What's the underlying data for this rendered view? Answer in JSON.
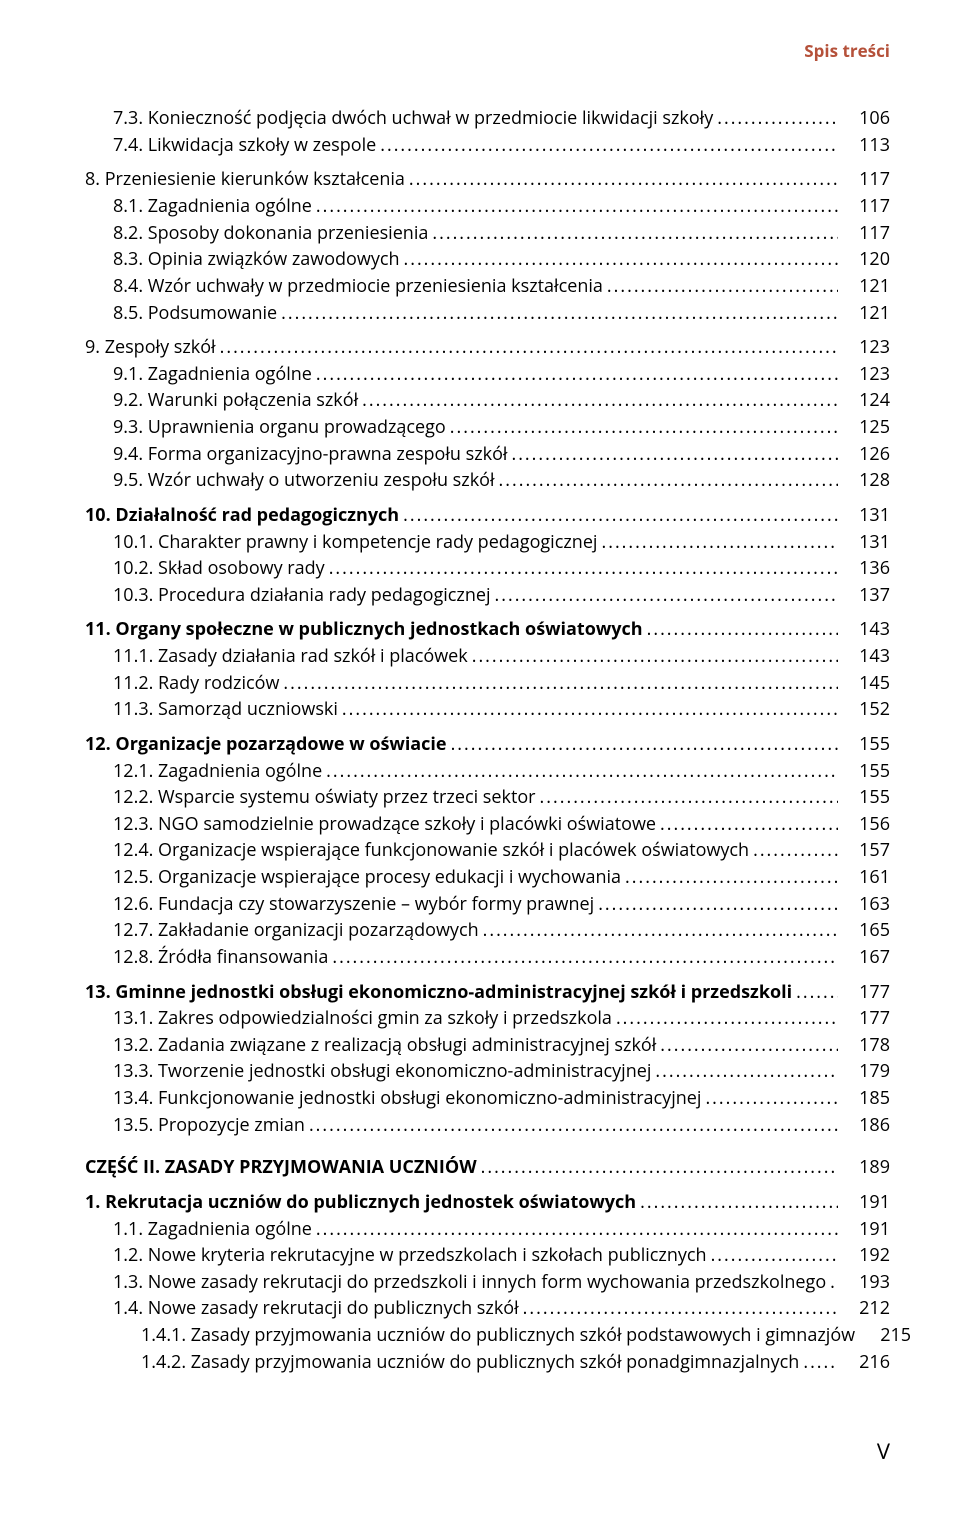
{
  "running_head": "Spis treści",
  "leader_char": ".",
  "footer_page": "V",
  "entries": [
    {
      "indent": 1,
      "bold": false,
      "text": "7.3. Konieczność podjęcia dwóch uchwał w przedmiocie likwidacji szkoły",
      "page": "106",
      "group_start": false
    },
    {
      "indent": 1,
      "bold": false,
      "text": "7.4. Likwidacja szkoły w zespole",
      "page": "113",
      "group_start": false
    },
    {
      "indent": 0,
      "bold": false,
      "text": "8. Przeniesienie kierunków kształcenia",
      "page": "117",
      "group_start": true
    },
    {
      "indent": 1,
      "bold": false,
      "text": "8.1. Zagadnienia ogólne",
      "page": "117",
      "group_start": false
    },
    {
      "indent": 1,
      "bold": false,
      "text": "8.2. Sposoby dokonania przeniesienia",
      "page": "117",
      "group_start": false
    },
    {
      "indent": 1,
      "bold": false,
      "text": "8.3. Opinia związków zawodowych",
      "page": "120",
      "group_start": false
    },
    {
      "indent": 1,
      "bold": false,
      "text": "8.4. Wzór uchwały w przedmiocie przeniesienia kształcenia",
      "page": "121",
      "group_start": false
    },
    {
      "indent": 1,
      "bold": false,
      "text": "8.5. Podsumowanie",
      "page": "121",
      "group_start": false
    },
    {
      "indent": 0,
      "bold": false,
      "text": "9. Zespoły szkół",
      "page": "123",
      "group_start": true
    },
    {
      "indent": 1,
      "bold": false,
      "text": "9.1. Zagadnienia ogólne",
      "page": "123",
      "group_start": false
    },
    {
      "indent": 1,
      "bold": false,
      "text": "9.2. Warunki połączenia szkół",
      "page": "124",
      "group_start": false
    },
    {
      "indent": 1,
      "bold": false,
      "text": "9.3. Uprawnienia organu prowadzącego",
      "page": "125",
      "group_start": false
    },
    {
      "indent": 1,
      "bold": false,
      "text": "9.4. Forma organizacyjno-prawna zespołu szkół",
      "page": "126",
      "group_start": false
    },
    {
      "indent": 1,
      "bold": false,
      "text": "9.5. Wzór uchwały o utworzeniu zespołu szkół",
      "page": "128",
      "group_start": false
    },
    {
      "indent": 0,
      "bold": true,
      "text": "10. Działalność rad pedagogicznych",
      "page": "131",
      "group_start": true
    },
    {
      "indent": 1,
      "bold": false,
      "text": "10.1. Charakter prawny i kompetencje rady pedagogicznej",
      "page": "131",
      "group_start": false
    },
    {
      "indent": 1,
      "bold": false,
      "text": "10.2. Skład osobowy rady",
      "page": "136",
      "group_start": false
    },
    {
      "indent": 1,
      "bold": false,
      "text": "10.3. Procedura działania rady pedagogicznej",
      "page": "137",
      "group_start": false
    },
    {
      "indent": 0,
      "bold": true,
      "text": "11. Organy społeczne w publicznych jednostkach oświatowych",
      "page": "143",
      "group_start": true
    },
    {
      "indent": 1,
      "bold": false,
      "text": "11.1. Zasady działania rad szkół i placówek",
      "page": "143",
      "group_start": false
    },
    {
      "indent": 1,
      "bold": false,
      "text": "11.2. Rady rodziców",
      "page": "145",
      "group_start": false
    },
    {
      "indent": 1,
      "bold": false,
      "text": "11.3. Samorząd uczniowski",
      "page": "152",
      "group_start": false
    },
    {
      "indent": 0,
      "bold": true,
      "text": "12. Organizacje pozarządowe w oświacie",
      "page": "155",
      "group_start": true
    },
    {
      "indent": 1,
      "bold": false,
      "text": "12.1. Zagadnienia ogólne",
      "page": "155",
      "group_start": false
    },
    {
      "indent": 1,
      "bold": false,
      "text": "12.2. Wsparcie systemu oświaty przez trzeci sektor",
      "page": "155",
      "group_start": false
    },
    {
      "indent": 1,
      "bold": false,
      "text": "12.3. NGO samodzielnie prowadzące szkoły i placówki oświatowe",
      "page": "156",
      "group_start": false
    },
    {
      "indent": 1,
      "bold": false,
      "text": "12.4. Organizacje wspierające funkcjonowanie szkół i placówek oświatowych",
      "page": "157",
      "group_start": false
    },
    {
      "indent": 1,
      "bold": false,
      "text": "12.5. Organizacje wspierające procesy edukacji i wychowania",
      "page": "161",
      "group_start": false
    },
    {
      "indent": 1,
      "bold": false,
      "text": "12.6. Fundacja czy stowarzyszenie – wybór formy prawnej",
      "page": "163",
      "group_start": false
    },
    {
      "indent": 1,
      "bold": false,
      "text": "12.7. Zakładanie organizacji pozarządowych",
      "page": "165",
      "group_start": false
    },
    {
      "indent": 1,
      "bold": false,
      "text": "12.8. Źródła finansowania",
      "page": "167",
      "group_start": false
    },
    {
      "indent": 0,
      "bold": true,
      "text": "13. Gminne jednostki obsługi ekonomiczno-administracyjnej szkół i przedszkoli",
      "page": "177",
      "group_start": true
    },
    {
      "indent": 1,
      "bold": false,
      "text": "13.1. Zakres odpowiedzialności gmin za szkoły i przedszkola",
      "page": "177",
      "group_start": false
    },
    {
      "indent": 1,
      "bold": false,
      "text": "13.2. Zadania związane z realizacją obsługi administracyjnej szkół",
      "page": "178",
      "group_start": false
    },
    {
      "indent": 1,
      "bold": false,
      "text": "13.3. Tworzenie jednostki obsługi ekonomiczno-administracyjnej",
      "page": "179",
      "group_start": false
    },
    {
      "indent": 1,
      "bold": false,
      "text": "13.4. Funkcjonowanie jednostki obsługi ekonomiczno-administracyjnej",
      "page": "185",
      "group_start": false
    },
    {
      "indent": 1,
      "bold": false,
      "text": "13.5. Propozycje zmian",
      "page": "186",
      "group_start": false
    },
    {
      "indent": 0,
      "bold": true,
      "text": "CZĘŚĆ II. ZASADY PRZYJMOWANIA UCZNIÓW",
      "page": "189",
      "group_start": true,
      "part": true
    },
    {
      "indent": 0,
      "bold": true,
      "text": "1. Rekrutacja uczniów do publicznych jednostek oświatowych",
      "page": "191",
      "group_start": true
    },
    {
      "indent": 1,
      "bold": false,
      "text": "1.1. Zagadnienia ogólne",
      "page": "191",
      "group_start": false
    },
    {
      "indent": 1,
      "bold": false,
      "text": "1.2. Nowe kryteria rekrutacyjne w przedszkolach i szkołach publicznych",
      "page": "192",
      "group_start": false
    },
    {
      "indent": 1,
      "bold": false,
      "text": "1.3. Nowe zasady rekrutacji do przedszkoli i innych form wychowania przedszkolnego",
      "page": "193",
      "group_start": false
    },
    {
      "indent": 1,
      "bold": false,
      "text": "1.4. Nowe zasady rekrutacji do publicznych szkół",
      "page": "212",
      "group_start": false
    },
    {
      "indent": 2,
      "bold": false,
      "text": "1.4.1. Zasady przyjmowania uczniów do publicznych szkół podstawowych i gimnazjów",
      "page": "215",
      "group_start": false
    },
    {
      "indent": 2,
      "bold": false,
      "text": "1.4.2. Zasady przyjmowania uczniów do publicznych szkół ponadgimnazjalnych",
      "page": "216",
      "group_start": false
    }
  ]
}
